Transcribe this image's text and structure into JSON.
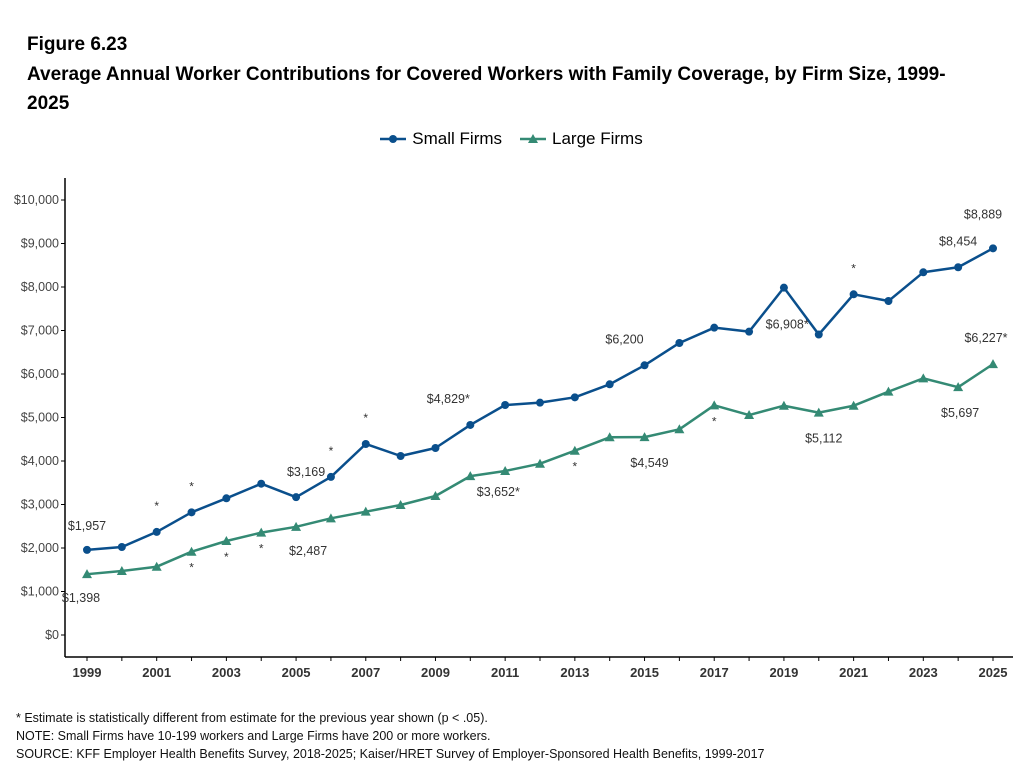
{
  "figure_number": "Figure 6.23",
  "title": "Average Annual Worker Contributions for Covered Workers with Family Coverage, by Firm Size, 1999-2025",
  "notes": [
    "* Estimate is statistically different from estimate for the previous year shown (p < .05).",
    "NOTE: Small Firms have 10-199 workers and Large Firms have 200 or more workers.",
    "SOURCE: KFF Employer Health Benefits Survey, 2018-2025; Kaiser/HRET Survey of Employer-Sponsored Health Benefits, 1999-2017"
  ],
  "chart_data": {
    "type": "line",
    "title": "Average Annual Worker Contributions for Covered Workers with Family Coverage, by Firm Size, 1999-2025",
    "xlabel": "",
    "ylabel": "",
    "x": [
      1999,
      2000,
      2001,
      2002,
      2003,
      2004,
      2005,
      2006,
      2007,
      2008,
      2009,
      2010,
      2011,
      2012,
      2013,
      2014,
      2015,
      2016,
      2017,
      2018,
      2019,
      2020,
      2021,
      2022,
      2023,
      2024,
      2025
    ],
    "x_tick_labels": [
      "1999",
      "2001",
      "2003",
      "2005",
      "2007",
      "2009",
      "2011",
      "2013",
      "2015",
      "2017",
      "2019",
      "2021",
      "2023",
      "2025"
    ],
    "ylim": [
      0,
      10000
    ],
    "y_ticks": [
      0,
      1000,
      2000,
      3000,
      4000,
      5000,
      6000,
      7000,
      8000,
      9000,
      10000
    ],
    "y_tick_labels": [
      "$0",
      "$1,000",
      "$2,000",
      "$3,000",
      "$4,000",
      "$5,000",
      "$6,000",
      "$7,000",
      "$8,000",
      "$9,000",
      "$10,000"
    ],
    "grid": false,
    "legend_position": "top",
    "series": [
      {
        "name": "Small Firms",
        "color": "#0a4f8c",
        "marker": "circle",
        "values": [
          1957,
          2023,
          2370,
          2820,
          3143,
          3478,
          3169,
          3634,
          4391,
          4115,
          4299,
          4829,
          5287,
          5341,
          5464,
          5763,
          6200,
          6713,
          7065,
          6973,
          7985,
          6908,
          7832,
          7678,
          8338,
          8454,
          8889
        ],
        "data_labels": {
          "1999": "$1,957",
          "2005": "$3,169",
          "2010": "$4,829*",
          "2015": "$6,200",
          "2020": "$6,908*",
          "2024": "$8,454",
          "2025": "$8,889"
        },
        "significant_years": [
          2001,
          2002,
          2006,
          2007,
          2021
        ]
      },
      {
        "name": "Large Firms",
        "color": "#348a74",
        "marker": "triangle",
        "values": [
          1398,
          1471,
          1570,
          1915,
          2161,
          2353,
          2487,
          2682,
          2835,
          2989,
          3195,
          3652,
          3770,
          3938,
          4237,
          4545,
          4549,
          4729,
          5280,
          5057,
          5271,
          5112,
          5271,
          5594,
          5900,
          5697,
          6227
        ],
        "data_labels": {
          "1999": "$1,398",
          "2005": "$2,487",
          "2010": "$3,652*",
          "2015": "$4,549",
          "2020": "$5,112",
          "2024": "$5,697",
          "2025": "$6,227*"
        },
        "significant_years": [
          2002,
          2003,
          2004,
          2013,
          2017
        ]
      }
    ],
    "significance_marker": "*"
  }
}
